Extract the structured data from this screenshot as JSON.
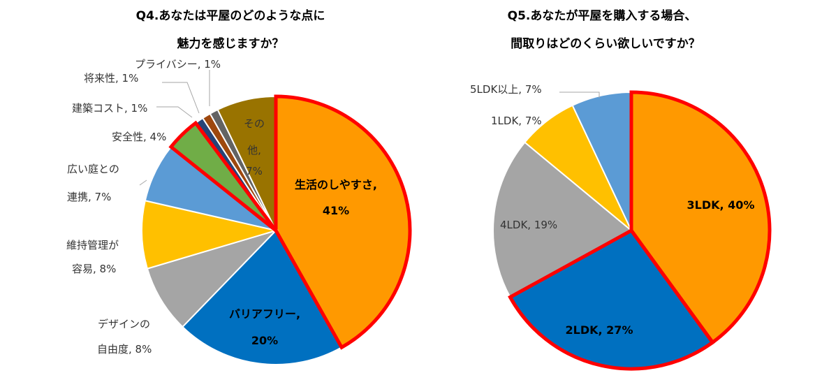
{
  "chart_data": [
    {
      "type": "pie",
      "title_lines": [
        "Q4.あなたは平屋のどのような点に",
        "魅力を感じますか？"
      ],
      "slices": [
        {
          "label": "生活のしやすさ,",
          "value_text": "41%",
          "value": 41,
          "color": "#FF9900",
          "bold": true,
          "highlight": true
        },
        {
          "label": "バリアフリー,",
          "value_text": "20%",
          "value": 20,
          "color": "#0070C0",
          "bold": true,
          "highlight": false
        },
        {
          "label": "デザインの",
          "label2": "自由度, 8%",
          "value": 8,
          "color": "#A5A5A5",
          "highlight": false
        },
        {
          "label": "維持管理が",
          "label2": "容易, 8%",
          "value": 8,
          "color": "#FFC000",
          "highlight": false
        },
        {
          "label": "広い庭との",
          "label2": "連携, 7%",
          "value": 7,
          "color": "#5B9BD5",
          "highlight": false
        },
        {
          "label": "安全性, 4%",
          "value": 4,
          "color": "#70AD47",
          "highlight": true
        },
        {
          "label": "建築コスト, 1%",
          "value": 1,
          "color": "#264478",
          "highlight": false
        },
        {
          "label": "将来性, 1%",
          "value": 1,
          "color": "#9E480E",
          "highlight": false
        },
        {
          "label": "プライバシー, 1%",
          "value": 1,
          "color": "#636363",
          "highlight": false
        },
        {
          "label": "その",
          "label2": "他,",
          "label3": "7%",
          "value": 7,
          "color": "#997300",
          "highlight": false
        }
      ]
    },
    {
      "type": "pie",
      "title_lines": [
        "Q5.あなたが平屋を購入する場合、",
        "間取りはどのくらい欲しいですか？"
      ],
      "slices": [
        {
          "label": "3LDK, 40%",
          "value": 40,
          "color": "#FF9900",
          "bold": true,
          "highlight": true
        },
        {
          "label": "2LDK, 27%",
          "value": 27,
          "color": "#0070C0",
          "bold": true,
          "highlight": true
        },
        {
          "label": "4LDK, 19%",
          "value": 19,
          "color": "#A5A5A5",
          "highlight": false
        },
        {
          "label": "1LDK, 7%",
          "value": 7,
          "color": "#FFC000",
          "highlight": false
        },
        {
          "label": "5LDK以上, 7%",
          "value": 7,
          "color": "#5B9BD5",
          "highlight": false
        }
      ]
    }
  ]
}
